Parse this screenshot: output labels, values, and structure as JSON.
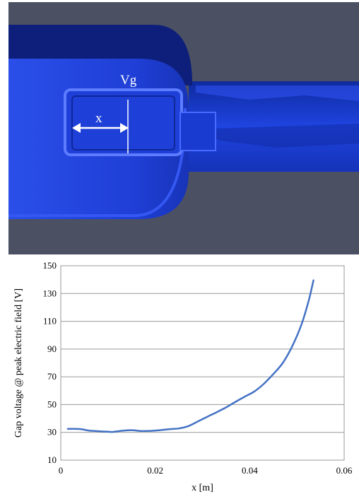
{
  "scene": {
    "gap_label": "Vg",
    "x_label": "x",
    "colors": {
      "background": "#4b5063",
      "cavity": "#1f3fd6",
      "cavity_dark": "#0d1f7a",
      "arrow": "#ffffff"
    }
  },
  "chart_data": {
    "type": "line",
    "xlabel": "x [m]",
    "ylabel": "Gap voltage @ peak electric field [V]",
    "xlim": [
      0,
      0.06
    ],
    "ylim": [
      10,
      150
    ],
    "xticks": [
      0,
      0.02,
      0.04,
      0.06
    ],
    "xtick_labels": [
      "0",
      "0.02",
      "0.04",
      "0.06"
    ],
    "yticks": [
      10,
      30,
      50,
      70,
      90,
      110,
      130,
      150
    ],
    "ytick_labels": [
      "10",
      "30",
      "50",
      "70",
      "90",
      "110",
      "130",
      "150"
    ],
    "grid": "horizontal",
    "legend": "none",
    "line_color": "#4472c4",
    "series": [
      {
        "x": [
          0.0015,
          0.004,
          0.006,
          0.008,
          0.01,
          0.011,
          0.013,
          0.015,
          0.017,
          0.019,
          0.021,
          0.023,
          0.025,
          0.027,
          0.029,
          0.031,
          0.033,
          0.035,
          0.037,
          0.039,
          0.041,
          0.043,
          0.045,
          0.047,
          0.049,
          0.051,
          0.0525,
          0.0535
        ],
        "y": [
          32.5,
          32.4,
          31.3,
          30.8,
          30.5,
          30.3,
          31.2,
          31.6,
          31.0,
          31.1,
          31.6,
          32.3,
          32.8,
          34.5,
          37.8,
          41.2,
          44.5,
          48.0,
          52.0,
          55.8,
          59.5,
          65.0,
          72.0,
          80.0,
          92.0,
          108.0,
          125.0,
          139.5
        ]
      }
    ]
  }
}
